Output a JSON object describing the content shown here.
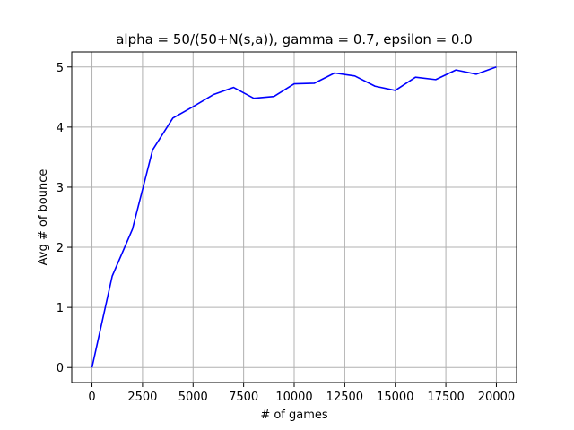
{
  "chart_data": {
    "type": "line",
    "title": "alpha = 50/(50+N(s,a)), gamma = 0.7, epsilon = 0.0",
    "xlabel": "# of games",
    "ylabel": "Avg # of bounce",
    "xlim": [
      -1000,
      21000
    ],
    "ylim": [
      -0.25,
      5.25
    ],
    "xticks": [
      0,
      2500,
      5000,
      7500,
      10000,
      12500,
      15000,
      17500,
      20000
    ],
    "yticks": [
      0,
      1,
      2,
      3,
      4,
      5
    ],
    "grid": true,
    "series": [
      {
        "color": "#0000ff",
        "x": [
          0,
          1000,
          2000,
          3000,
          4000,
          5000,
          6000,
          7000,
          8000,
          9000,
          10000,
          11000,
          12000,
          13000,
          14000,
          15000,
          16000,
          17000,
          18000,
          19000,
          20000
        ],
        "y": [
          0.0,
          1.52,
          2.3,
          3.62,
          4.15,
          4.34,
          4.54,
          4.66,
          4.48,
          4.51,
          4.72,
          4.73,
          4.9,
          4.85,
          4.68,
          4.61,
          4.83,
          4.79,
          4.95,
          4.88,
          5.0
        ]
      }
    ]
  }
}
